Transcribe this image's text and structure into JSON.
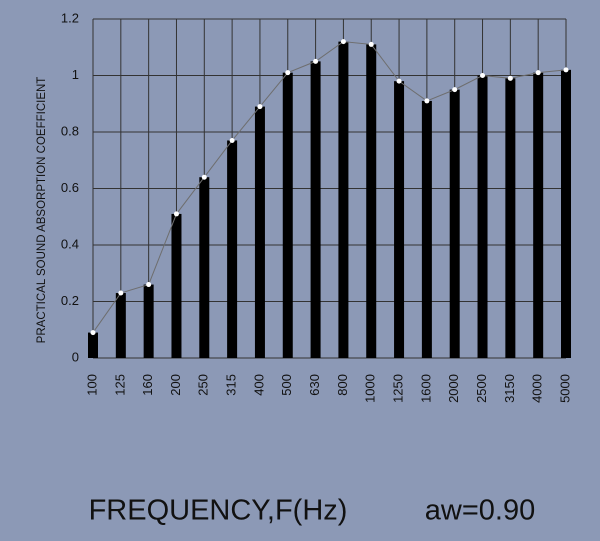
{
  "chart_data": {
    "type": "bar",
    "ylabel": "PRACTICAL SOUND ABSORPTION COEFFICIENT",
    "xlabel": "FREQUENCY,F(Hz)",
    "annotation": "aw=0.90",
    "categories": [
      "100",
      "125",
      "160",
      "200",
      "250",
      "315",
      "400",
      "500",
      "630",
      "800",
      "1000",
      "1250",
      "1600",
      "2000",
      "2500",
      "3150",
      "4000",
      "5000"
    ],
    "values": [
      0.09,
      0.23,
      0.26,
      0.51,
      0.64,
      0.77,
      0.89,
      1.01,
      1.05,
      1.12,
      1.11,
      0.98,
      0.91,
      0.95,
      1.0,
      0.99,
      1.01,
      1.02
    ],
    "color": "#000000",
    "line_color": "#6e6e6e",
    "ylim": [
      0,
      1.2
    ],
    "yticks": [
      0,
      0.2,
      0.4,
      0.6,
      0.8,
      1,
      1.2
    ],
    "grid": true
  }
}
